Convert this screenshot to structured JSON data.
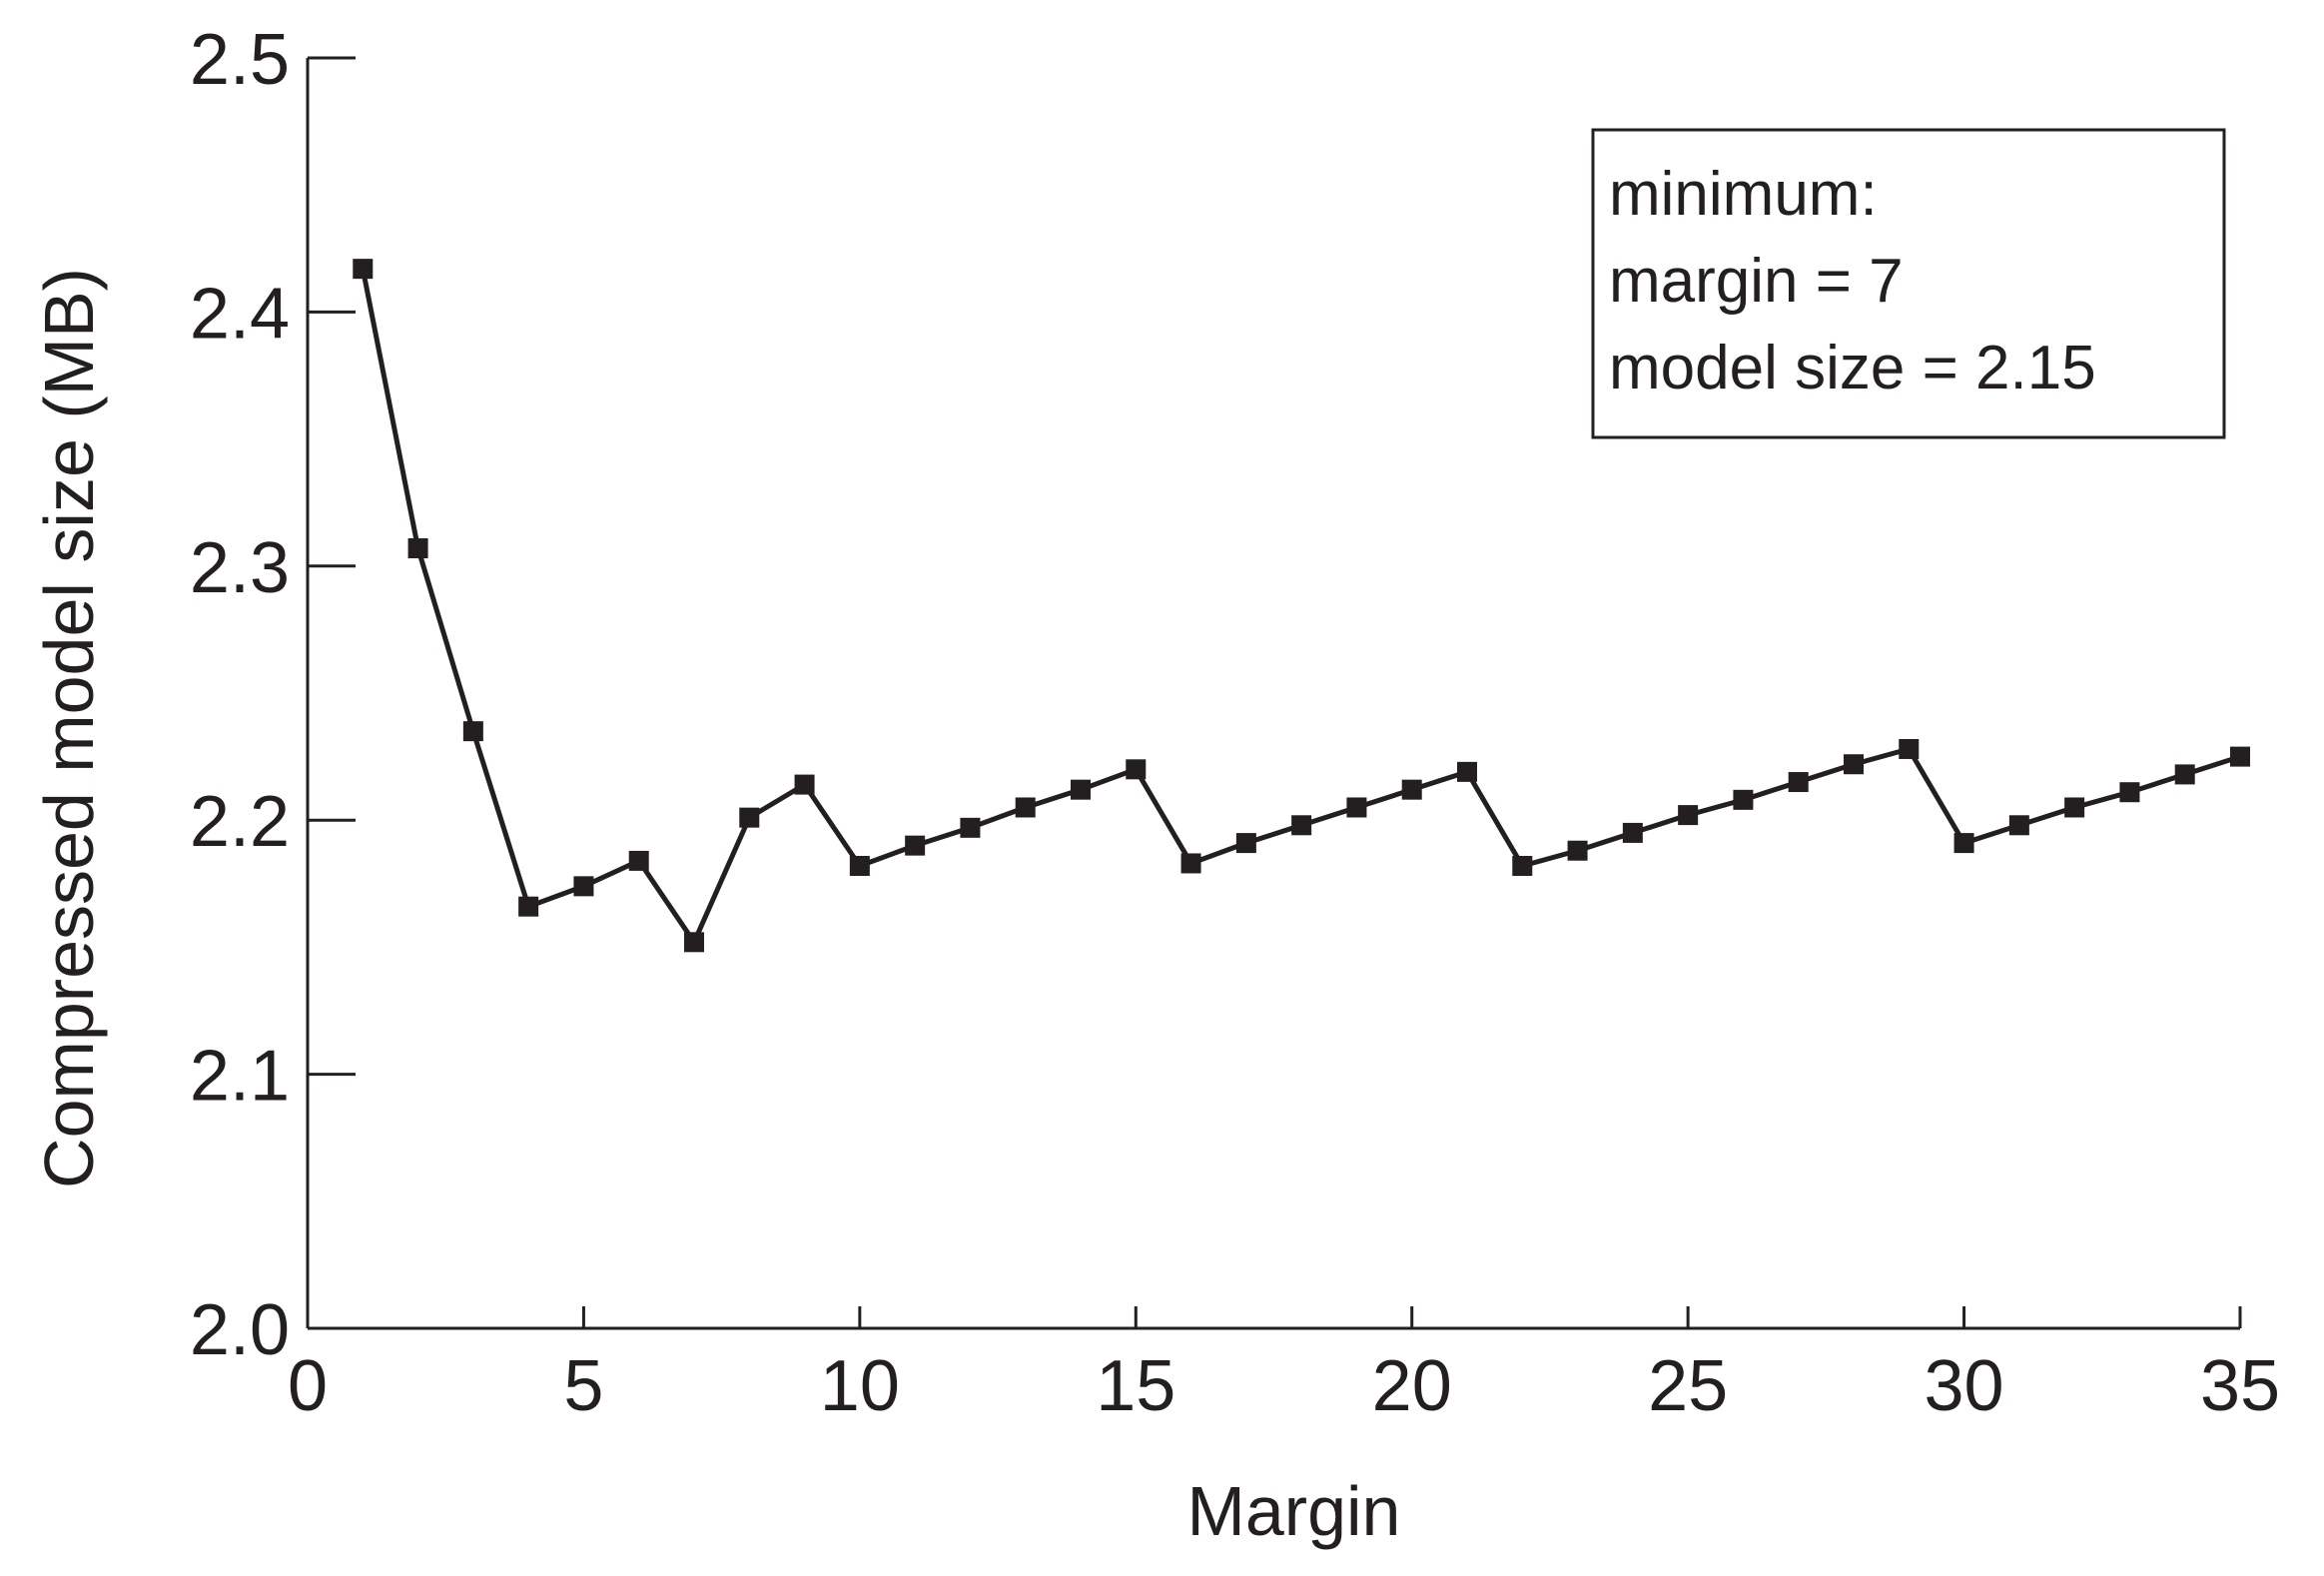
{
  "chart_data": {
    "type": "line",
    "title": "",
    "xlabel": "Margin",
    "ylabel": "Compressed model size (MB)",
    "xlim": [
      0,
      35
    ],
    "ylim": [
      2.0,
      2.5
    ],
    "xticks": [
      0,
      5,
      10,
      15,
      20,
      25,
      30,
      35
    ],
    "xtick_labels": [
      "0",
      "5",
      "10",
      "15",
      "20",
      "25",
      "30",
      "35"
    ],
    "yticks": [
      2.0,
      2.1,
      2.2,
      2.3,
      2.4,
      2.5
    ],
    "ytick_labels": [
      "2.0",
      "2.1",
      "2.2",
      "2.3",
      "2.4",
      "2.5"
    ],
    "grid": false,
    "series": [
      {
        "color": "#231f20",
        "marker": "square",
        "x": [
          1,
          2,
          3,
          4,
          5,
          6,
          7,
          8,
          9,
          10,
          11,
          12,
          13,
          14,
          15,
          16,
          17,
          18,
          19,
          20,
          21,
          22,
          23,
          24,
          25,
          26,
          27,
          28,
          29,
          30,
          31,
          32,
          33,
          34,
          35
        ],
        "y": [
          2.417,
          2.307,
          2.235,
          2.166,
          2.174,
          2.184,
          2.152,
          2.201,
          2.214,
          2.182,
          2.19,
          2.197,
          2.205,
          2.212,
          2.22,
          2.183,
          2.191,
          2.198,
          2.205,
          2.212,
          2.219,
          2.182,
          2.188,
          2.195,
          2.202,
          2.208,
          2.215,
          2.222,
          2.228,
          2.191,
          2.198,
          2.205,
          2.211,
          2.218,
          2.225
        ]
      }
    ],
    "annotation": {
      "lines": [
        "minimum:",
        "margin = 7",
        "model size = 2.15"
      ],
      "placement": "top-right"
    }
  }
}
